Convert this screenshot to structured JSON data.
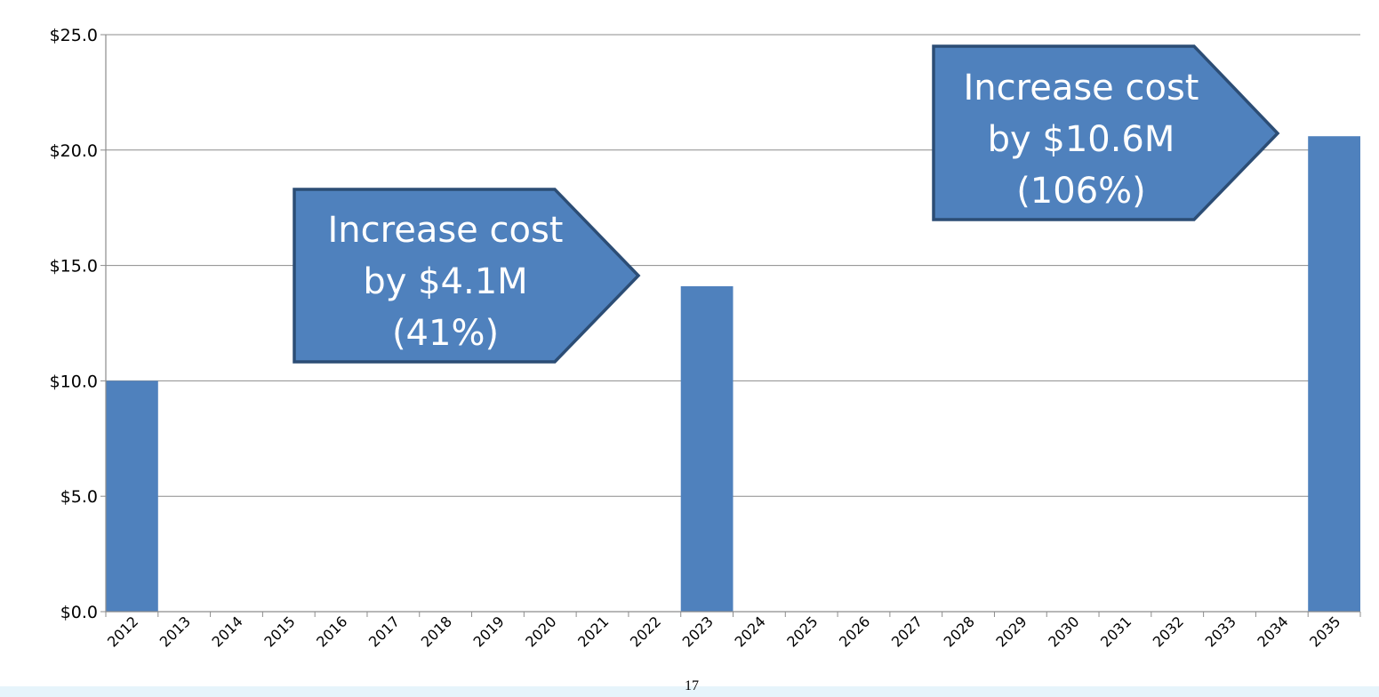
{
  "chart_data": {
    "type": "bar",
    "categories": [
      "2012",
      "2013",
      "2014",
      "2015",
      "2016",
      "2017",
      "2018",
      "2019",
      "2020",
      "2021",
      "2022",
      "2023",
      "2024",
      "2025",
      "2026",
      "2027",
      "2028",
      "2029",
      "2030",
      "2031",
      "2032",
      "2033",
      "2034",
      "2035"
    ],
    "values": [
      10.0,
      null,
      null,
      null,
      null,
      null,
      null,
      null,
      null,
      null,
      null,
      14.1,
      null,
      null,
      null,
      null,
      null,
      null,
      null,
      null,
      null,
      null,
      null,
      20.6
    ],
    "ylim": [
      0,
      25
    ],
    "yticks": [
      "$0.0",
      "$5.0",
      "$10.0",
      "$15.0",
      "$20.0",
      "$25.0"
    ],
    "grid": true,
    "bar_color": "#4f81bd",
    "annotations": [
      {
        "lines": [
          "Increase cost",
          "by $4.1M",
          "(41%)"
        ],
        "fill": "#4f81bd",
        "border": "#2c4d75"
      },
      {
        "lines": [
          "Increase cost",
          "by $10.6M",
          "(106%)"
        ],
        "fill": "#4f81bd",
        "border": "#2c4d75"
      }
    ]
  },
  "footer": {
    "page_number": "17"
  }
}
